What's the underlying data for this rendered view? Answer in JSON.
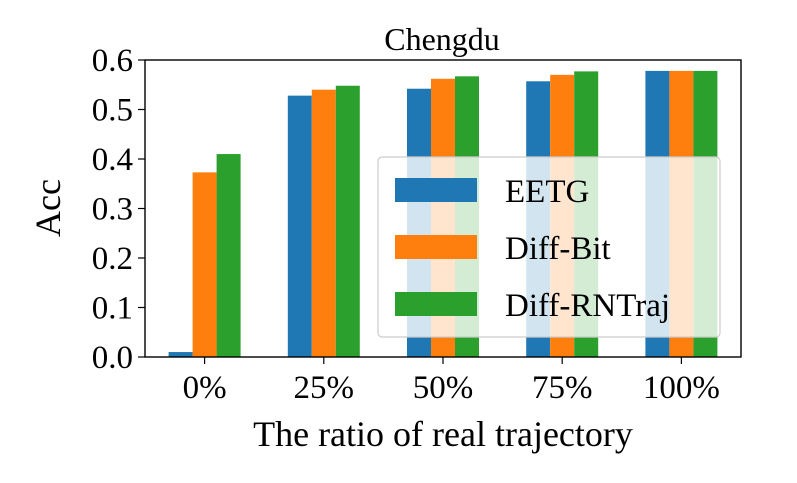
{
  "chart_data": {
    "type": "bar",
    "title": "Chengdu",
    "xlabel": "The ratio of real trajectory",
    "ylabel": "Acc",
    "categories": [
      "0%",
      "25%",
      "50%",
      "75%",
      "100%"
    ],
    "series": [
      {
        "name": "EETG",
        "color": "#1f77b4",
        "values": [
          0.01,
          0.528,
          0.542,
          0.557,
          0.578
        ]
      },
      {
        "name": "Diff-Bit",
        "color": "#ff7f0e",
        "values": [
          0.373,
          0.54,
          0.562,
          0.57,
          0.578
        ]
      },
      {
        "name": "Diff-RNTraj",
        "color": "#2ca02c",
        "values": [
          0.41,
          0.548,
          0.567,
          0.577,
          0.578
        ]
      }
    ],
    "ylim": [
      0.0,
      0.6
    ],
    "yticks": [
      0.0,
      0.1,
      0.2,
      0.3,
      0.4,
      0.5,
      0.6
    ],
    "ytick_labels": [
      "0.0",
      "0.1",
      "0.2",
      "0.3",
      "0.4",
      "0.5",
      "0.6"
    ],
    "legend_position": "center-right",
    "grid": false
  }
}
